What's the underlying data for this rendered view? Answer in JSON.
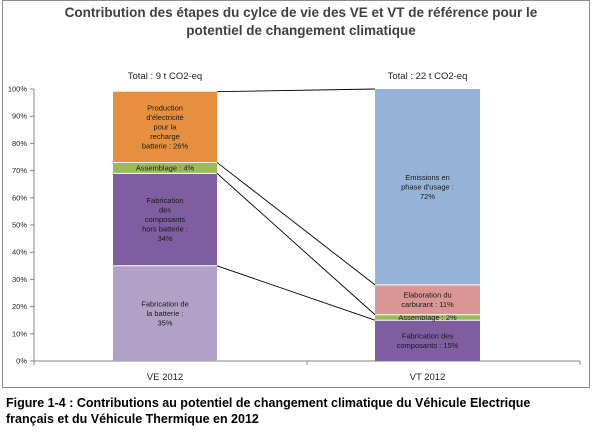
{
  "chart_data": {
    "type": "bar",
    "stacked": true,
    "title_lines": [
      "Contribution des étapes du cylce de vie des VE et VT de référence pour le",
      "potentiel de changement climatique"
    ],
    "categories": [
      "VE 2012",
      "VT 2012"
    ],
    "totals": [
      "Total : 9 t CO2-eq",
      "Total : 22 t CO2-eq"
    ],
    "y_ticks": [
      "0%",
      "10%",
      "20%",
      "30%",
      "40%",
      "50%",
      "60%",
      "70%",
      "80%",
      "90%",
      "100%"
    ],
    "ylim": [
      0,
      100
    ],
    "grid": false,
    "legend": "none",
    "bars": [
      {
        "category": "VE 2012",
        "segments": [
          {
            "label": [
              "Fabrication de",
              "la batterie :",
              "35%"
            ],
            "value": 35,
            "color": "#b2a1c7"
          },
          {
            "label": [
              "Fabrication",
              "des",
              "composants",
              "hors batterie :",
              "34%"
            ],
            "value": 34,
            "color": "#7e5da1"
          },
          {
            "label": [
              "Assemblage : 4%"
            ],
            "value": 4,
            "color": "#9bbb59"
          },
          {
            "label": [
              "Production",
              "d'électricité",
              "pour la",
              "recharge",
              "batterie : 26%"
            ],
            "value": 26,
            "color": "#e68f3f"
          }
        ]
      },
      {
        "category": "VT 2012",
        "segments": [
          {
            "label": [
              "Fabrication des",
              "composants : 15%"
            ],
            "value": 15,
            "color": "#7e5da1"
          },
          {
            "label": [
              "Assemblage : 2%"
            ],
            "value": 2,
            "color": "#9bbb59"
          },
          {
            "label": [
              "Elaboration du",
              "carburant : 11%"
            ],
            "value": 11,
            "color": "#d99694"
          },
          {
            "label": [
              "Emissions en",
              "phase d'usage :",
              "72%"
            ],
            "value": 72,
            "color": "#95b3d7"
          }
        ]
      }
    ]
  },
  "caption_lines": [
    "Figure 1-4 : Contributions au potentiel de changement climatique du Véhicule Electrique",
    "français et du Véhicule Thermique en 2012"
  ]
}
